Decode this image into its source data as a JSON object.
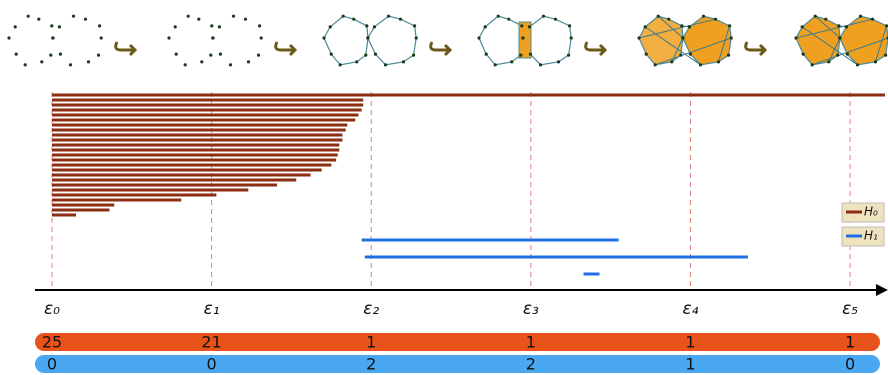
{
  "chart_data": {
    "type": "barcode",
    "xlim": [
      0,
      5.2
    ],
    "xticks": [
      {
        "value": 0,
        "label": "ε₀"
      },
      {
        "value": 1,
        "label": "ε₁"
      },
      {
        "value": 2,
        "label": "ε₂"
      },
      {
        "value": 3,
        "label": "ε₃"
      },
      {
        "value": 4,
        "label": "ε₄"
      },
      {
        "value": 5,
        "label": "ε₅"
      }
    ],
    "grid": true,
    "legend": "right",
    "series": [
      {
        "name": "H₀",
        "color": "#8b2e12",
        "bars": [
          [
            0,
            null
          ],
          [
            0,
            1.95
          ],
          [
            0,
            1.95
          ],
          [
            0,
            1.94
          ],
          [
            0,
            1.92
          ],
          [
            0,
            1.9
          ],
          [
            0,
            1.85
          ],
          [
            0,
            1.84
          ],
          [
            0,
            1.82
          ],
          [
            0,
            1.82
          ],
          [
            0,
            1.8
          ],
          [
            0,
            1.8
          ],
          [
            0,
            1.79
          ],
          [
            0,
            1.78
          ],
          [
            0,
            1.75
          ],
          [
            0,
            1.69
          ],
          [
            0,
            1.62
          ],
          [
            0,
            1.53
          ],
          [
            0,
            1.41
          ],
          [
            0,
            1.23
          ],
          [
            0,
            1.03
          ],
          [
            0,
            0.81
          ],
          [
            0,
            0.39
          ],
          [
            0,
            0.36
          ],
          [
            0,
            0.15
          ]
        ]
      },
      {
        "name": "H₁",
        "color": "#1f6fe0",
        "bars": [
          [
            1.94,
            3.55
          ],
          [
            1.96,
            4.36
          ],
          [
            3.33,
            3.43
          ]
        ]
      }
    ],
    "betti_rows": [
      {
        "color": "#e8531c",
        "values": [
          25,
          21,
          1,
          1,
          1,
          1
        ]
      },
      {
        "color": "#4aa8f0",
        "values": [
          0,
          0,
          2,
          2,
          1,
          0
        ]
      }
    ]
  }
}
